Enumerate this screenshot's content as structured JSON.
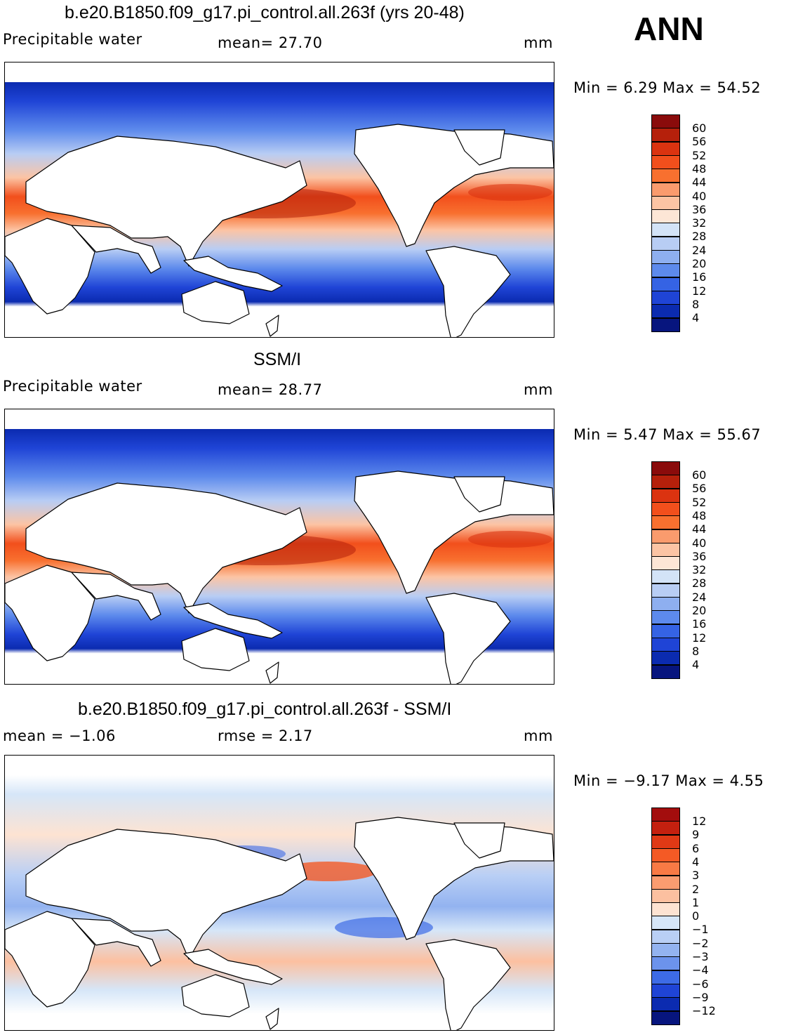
{
  "season": "ANN",
  "panels": [
    {
      "title": "b.e20.B1850.f09_g17.pi_control.all.263f (yrs 20-48)",
      "left_label": "Precipitable water",
      "mid_label": "mean=   27.70",
      "units": "mm",
      "minmax": "Min =    6.29  Max =   54.52",
      "colorbar": {
        "labels": [
          "60",
          "56",
          "52",
          "48",
          "44",
          "40",
          "36",
          "32",
          "28",
          "24",
          "20",
          "16",
          "12",
          "8",
          "4"
        ],
        "colors": [
          "#8a0b0b",
          "#b5200b",
          "#db3310",
          "#f24f1c",
          "#f8702f",
          "#fa9b6d",
          "#fcc4a4",
          "#fde6d6",
          "#d3e3f7",
          "#b8cdf4",
          "#8eaff0",
          "#5d8aec",
          "#3563e4",
          "#1f44d6",
          "#0b2bb0",
          "#07157e"
        ]
      }
    },
    {
      "title": "SSM/I",
      "left_label": "Precipitable water",
      "mid_label": "mean=   28.77",
      "units": "mm",
      "minmax": "Min =    5.47  Max =   55.67",
      "colorbar": {
        "labels": [
          "60",
          "56",
          "52",
          "48",
          "44",
          "40",
          "36",
          "32",
          "28",
          "24",
          "20",
          "16",
          "12",
          "8",
          "4"
        ],
        "colors": [
          "#8a0b0b",
          "#b5200b",
          "#db3310",
          "#f24f1c",
          "#f8702f",
          "#fa9b6d",
          "#fcc4a4",
          "#fde6d6",
          "#d3e3f7",
          "#b8cdf4",
          "#8eaff0",
          "#5d8aec",
          "#3563e4",
          "#1f44d6",
          "#0b2bb0",
          "#07157e"
        ]
      }
    },
    {
      "title": "b.e20.B1850.f09_g17.pi_control.all.263f - SSM/I",
      "left_label": "mean =   −1.06",
      "mid_label": "rmse =    2.17",
      "units": "mm",
      "minmax": "Min =  −9.17  Max =    4.55",
      "colorbar": {
        "labels": [
          "12",
          "9",
          "6",
          "4",
          "3",
          "2",
          "1",
          "0",
          "−1",
          "−2",
          "−3",
          "−4",
          "−6",
          "−9",
          "−12"
        ],
        "colors": [
          "#a30d0d",
          "#c4200f",
          "#e03915",
          "#f45a25",
          "#f87a45",
          "#fa9c70",
          "#fcc0a0",
          "#fde3d2",
          "#d6e6f8",
          "#b9cff5",
          "#93b3f0",
          "#6c93ec",
          "#3d6be6",
          "#1f44d6",
          "#0b2bb0",
          "#07157e"
        ]
      }
    }
  ]
}
